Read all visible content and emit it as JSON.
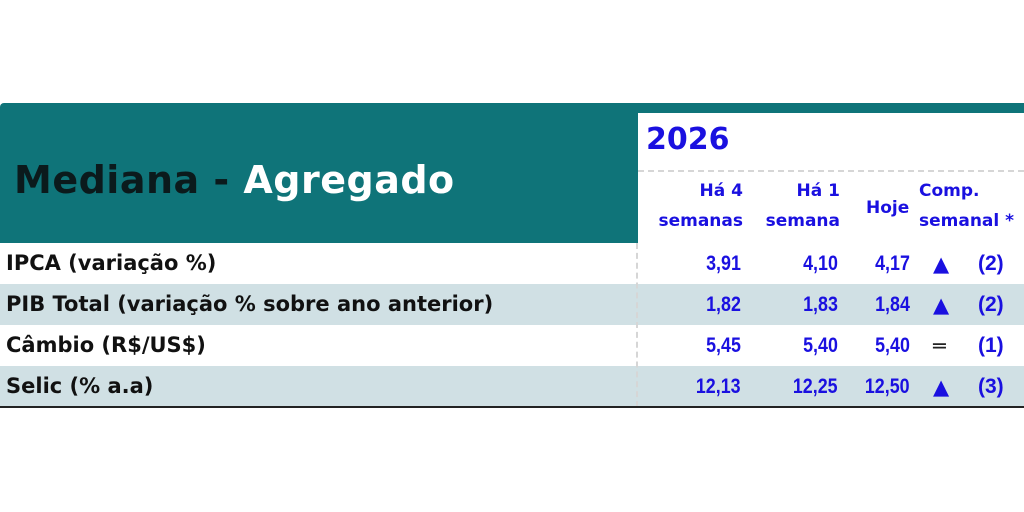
{
  "title": {
    "part1": "Mediana - ",
    "part2": "Agregado"
  },
  "year": "2026",
  "headers": {
    "col1": [
      "Há 4",
      "semanas"
    ],
    "col2": [
      "Há 1",
      "semana"
    ],
    "col3": "Hoje",
    "col4": [
      "Comp.",
      "semanal *"
    ]
  },
  "rows": [
    {
      "label": "IPCA (variação %)",
      "h4": "3,91",
      "h1": "4,10",
      "hoje": "4,17",
      "trend": "▲",
      "trend_icon": "up-triangle",
      "count": "(2)"
    },
    {
      "label": "PIB Total (variação % sobre ano anterior)",
      "h4": "1,82",
      "h1": "1,83",
      "hoje": "1,84",
      "trend": "▲",
      "trend_icon": "up-triangle",
      "count": "(2)"
    },
    {
      "label": "Câmbio (R$/US$)",
      "h4": "5,45",
      "h1": "5,40",
      "hoje": "5,40",
      "trend": "═",
      "trend_icon": "equal",
      "count": "(1)"
    },
    {
      "label": "Selic (% a.a)",
      "h4": "12,13",
      "h1": "12,25",
      "hoje": "12,50",
      "trend": "▲",
      "trend_icon": "up-triangle",
      "count": "(3)"
    }
  ],
  "colors": {
    "header_bg": "#0f7479",
    "value_text": "#1a10e0",
    "alt_row": "#d0e0e4"
  }
}
